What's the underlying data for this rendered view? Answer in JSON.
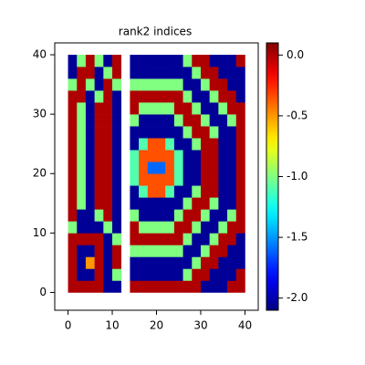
{
  "chart_data": {
    "type": "heatmap",
    "title": "rank2 indices",
    "x": [
      1,
      3,
      5,
      7,
      9,
      11,
      13,
      15,
      17,
      19,
      21,
      23,
      25,
      27,
      29,
      31,
      33,
      35,
      37,
      39
    ],
    "y": [
      1,
      3,
      5,
      7,
      9,
      11,
      13,
      15,
      17,
      19,
      21,
      23,
      25,
      27,
      29,
      31,
      33,
      35,
      37,
      39
    ],
    "values": [
      [
        0,
        0,
        0,
        0,
        -2.05,
        -2.05,
        null,
        0,
        0,
        0,
        0,
        0,
        0,
        0,
        0,
        -2.05,
        -2.05,
        -2.05,
        0,
        0
      ],
      [
        0,
        -2.05,
        -2.05,
        0,
        -2.05,
        -1.0,
        null,
        -2.05,
        -2.05,
        -2.05,
        -2.05,
        -2.05,
        -2.05,
        -1.0,
        0,
        0,
        -2.05,
        -2.05,
        -2.05,
        0
      ],
      [
        0,
        -2.05,
        -0.5,
        0,
        -2.05,
        0,
        null,
        -2.05,
        -2.05,
        -2.05,
        -2.05,
        -2.05,
        -2.05,
        -2.05,
        -1.0,
        0,
        0,
        -2.05,
        -2.05,
        -2.05
      ],
      [
        0,
        -2.05,
        -2.05,
        0,
        -2.05,
        0,
        null,
        -1.0,
        -1.0,
        -1.0,
        -1.0,
        -1.0,
        -1.0,
        -2.05,
        -2.05,
        -1.0,
        0,
        0,
        -2.05,
        -2.05
      ],
      [
        0,
        0,
        0,
        0,
        -2.05,
        -1.0,
        null,
        0,
        0,
        0,
        0,
        0,
        0,
        -1.0,
        -2.05,
        -2.05,
        -1.0,
        0,
        0,
        -2.05
      ],
      [
        -1.0,
        -2.05,
        -2.05,
        -2.05,
        -1.0,
        -2.05,
        null,
        0,
        -1.0,
        -1.0,
        -1.0,
        -1.0,
        0,
        0,
        -1.0,
        -2.05,
        -2.05,
        -1.0,
        0,
        0
      ],
      [
        0,
        -2.05,
        -2.05,
        -1.0,
        0,
        -2.05,
        null,
        -1.0,
        -2.05,
        -2.05,
        -2.05,
        -2.05,
        -1.0,
        0,
        0,
        -1.0,
        -2.05,
        -2.05,
        -1.0,
        0
      ],
      [
        0,
        -1.0,
        -2.05,
        0,
        0,
        -2.05,
        null,
        -2.05,
        -2.05,
        -2.05,
        -2.05,
        -2.05,
        -2.05,
        -1.0,
        0,
        0,
        -1.0,
        -2.05,
        -2.05,
        0
      ],
      [
        0,
        -1.0,
        -2.05,
        0,
        0,
        -2.05,
        null,
        -2.05,
        -1.1,
        -0.35,
        -0.35,
        -1.1,
        -2.05,
        -2.05,
        -1.0,
        0,
        0,
        -2.05,
        -2.05,
        0
      ],
      [
        0,
        -1.0,
        -2.05,
        0,
        0,
        -2.05,
        null,
        -1.1,
        -0.35,
        -0.35,
        -0.35,
        -0.35,
        -1.1,
        -2.05,
        -2.05,
        0,
        0,
        -2.05,
        -2.05,
        0
      ],
      [
        0,
        -1.0,
        -2.05,
        0,
        0,
        -2.05,
        null,
        -1.1,
        -0.35,
        -1.6,
        -1.6,
        -0.35,
        -1.1,
        -2.05,
        -2.05,
        0,
        0,
        -2.05,
        -2.05,
        0
      ],
      [
        0,
        -1.0,
        -2.05,
        0,
        0,
        -2.05,
        null,
        -1.1,
        -0.35,
        -0.35,
        -0.35,
        -0.35,
        -1.1,
        -2.05,
        -2.05,
        0,
        0,
        -2.05,
        -2.05,
        0
      ],
      [
        0,
        -1.0,
        -2.05,
        0,
        0,
        -2.05,
        null,
        -2.05,
        -1.1,
        -0.35,
        -0.35,
        -1.1,
        -2.05,
        -2.05,
        -1.0,
        0,
        0,
        -2.05,
        -2.05,
        0
      ],
      [
        0,
        -1.0,
        -2.05,
        0,
        0,
        -2.05,
        null,
        -2.05,
        -2.05,
        -2.05,
        -2.05,
        -2.05,
        -2.05,
        -1.0,
        0,
        0,
        -1.0,
        -2.05,
        -2.05,
        0
      ],
      [
        0,
        -1.0,
        -2.05,
        0,
        0,
        -2.05,
        null,
        -1.0,
        -2.05,
        -2.05,
        -2.05,
        -2.05,
        -1.0,
        0,
        0,
        -1.0,
        -2.05,
        -2.05,
        -1.0,
        0
      ],
      [
        0,
        -1.0,
        -2.05,
        0,
        0,
        -2.05,
        null,
        0,
        -1.0,
        -1.0,
        -1.0,
        -1.0,
        0,
        0,
        -1.0,
        -2.05,
        -2.05,
        -1.0,
        0,
        0
      ],
      [
        0,
        0,
        -2.05,
        -1.0,
        0,
        -2.05,
        null,
        0,
        0,
        0,
        0,
        0,
        0,
        -1.0,
        -2.05,
        -2.05,
        -1.0,
        0,
        0,
        -2.05
      ],
      [
        -1.0,
        0,
        -1.0,
        -2.05,
        0,
        -1.0,
        null,
        -1.0,
        -1.0,
        -1.0,
        -1.0,
        -1.0,
        -1.0,
        -2.05,
        -2.05,
        -1.0,
        0,
        0,
        -2.05,
        -2.05
      ],
      [
        -2.05,
        0,
        0,
        -2.05,
        -1.0,
        0,
        null,
        -2.05,
        -2.05,
        -2.05,
        -2.05,
        -2.05,
        -2.05,
        -2.05,
        -1.0,
        0,
        0,
        -2.05,
        -2.05,
        -2.05
      ],
      [
        -2.05,
        -1.0,
        0,
        -1.0,
        -2.05,
        0,
        null,
        -2.05,
        -2.05,
        -2.05,
        -2.05,
        -2.05,
        -2.05,
        -1.0,
        0,
        0,
        -2.05,
        -2.05,
        -2.05,
        0
      ]
    ],
    "xlim": [
      -3,
      43
    ],
    "ylim": [
      -3,
      42
    ],
    "xticks": [
      0,
      10,
      20,
      30,
      40
    ],
    "yticks": [
      0,
      10,
      20,
      30,
      40
    ],
    "colormap": "jet",
    "zlim": [
      -2.1,
      0.1
    ],
    "zticks": [
      {
        "value": 0,
        "label": "0.0"
      },
      -0.5,
      {
        "value": -1,
        "label": "-1.0"
      },
      -1.5,
      {
        "value": -2,
        "label": "-2.0"
      }
    ]
  }
}
